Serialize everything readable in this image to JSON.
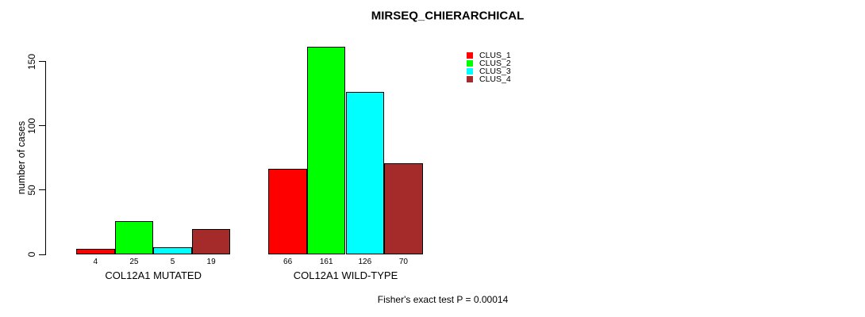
{
  "chart_data": {
    "type": "bar",
    "title": "MIRSEQ_CHIERARCHICAL",
    "ylabel": "number of cases",
    "xlabel": "",
    "categories": [
      "COL12A1 MUTATED",
      "COL12A1 WILD-TYPE"
    ],
    "series": [
      {
        "name": "CLUS_1",
        "color": "#ff0000",
        "values": [
          4,
          66
        ]
      },
      {
        "name": "CLUS_2",
        "color": "#00ff00",
        "values": [
          25,
          161
        ]
      },
      {
        "name": "CLUS_3",
        "color": "#00ffff",
        "values": [
          5,
          126
        ]
      },
      {
        "name": "CLUS_4",
        "color": "#a52a2a",
        "values": [
          19,
          70
        ]
      }
    ],
    "yticks": [
      0,
      50,
      100,
      150
    ],
    "ylim": [
      0,
      165
    ],
    "grid": false,
    "legend_position": "top-right",
    "show_value_labels": true,
    "annotation": "Fisher's exact test P = 0.00014"
  }
}
